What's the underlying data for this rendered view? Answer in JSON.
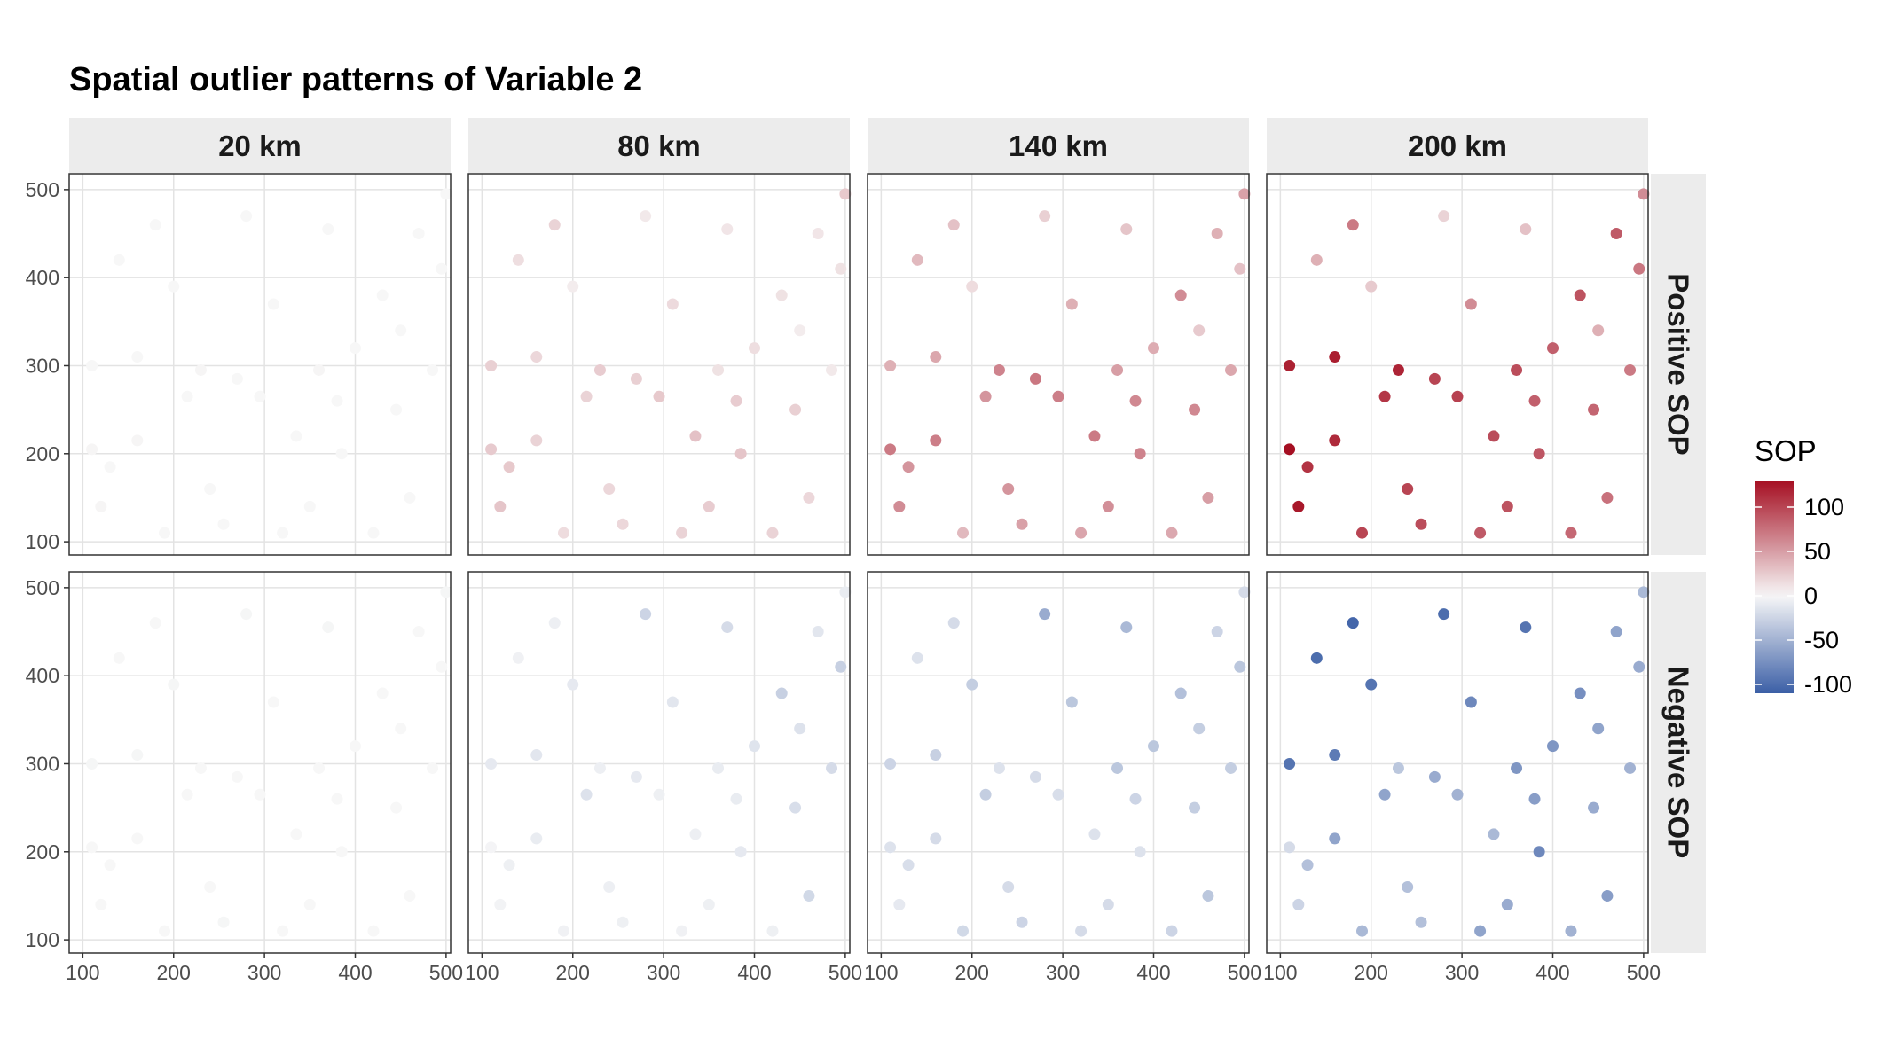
{
  "chart_data": {
    "type": "scatter",
    "title": "Spatial outlier patterns of Variable 2",
    "xlabel": "",
    "ylabel": "",
    "facet_columns": [
      "20 km",
      "80 km",
      "140 km",
      "200 km"
    ],
    "facet_rows": [
      "Positive SOP",
      "Negative SOP"
    ],
    "xlim": [
      85,
      505
    ],
    "ylim": [
      85,
      518
    ],
    "x_ticks": [
      100,
      200,
      300,
      400,
      500
    ],
    "y_ticks": [
      100,
      200,
      300,
      400,
      500
    ],
    "grid": true,
    "color_scale": {
      "title": "SOP",
      "range": [
        -110,
        130
      ],
      "ticks": [
        100,
        50,
        0,
        -50,
        -100
      ],
      "colors": {
        "low": "#3b5fa6",
        "mid": "#f7f7f7",
        "high": "#a50f22"
      }
    },
    "legend_position": "right",
    "sample_points": [
      [
        110,
        205
      ],
      [
        110,
        300
      ],
      [
        120,
        140
      ],
      [
        130,
        185
      ],
      [
        160,
        215
      ],
      [
        160,
        310
      ],
      [
        190,
        110
      ],
      [
        215,
        265
      ],
      [
        230,
        295
      ],
      [
        255,
        120
      ],
      [
        270,
        285
      ],
      [
        280,
        470
      ],
      [
        295,
        265
      ],
      [
        320,
        110
      ],
      [
        335,
        220
      ],
      [
        350,
        140
      ],
      [
        360,
        295
      ],
      [
        370,
        455
      ],
      [
        385,
        200
      ],
      [
        400,
        320
      ],
      [
        420,
        110
      ],
      [
        430,
        380
      ],
      [
        445,
        250
      ],
      [
        460,
        150
      ],
      [
        470,
        450
      ],
      [
        485,
        295
      ],
      [
        495,
        410
      ],
      [
        500,
        495
      ],
      [
        140,
        420
      ],
      [
        180,
        460
      ],
      [
        200,
        390
      ],
      [
        240,
        160
      ],
      [
        310,
        370
      ],
      [
        380,
        260
      ],
      [
        450,
        340
      ]
    ],
    "panels": [
      {
        "row": "Positive SOP",
        "col": "20 km",
        "sop": [
          1,
          0,
          1,
          0,
          1,
          0,
          0,
          0,
          1,
          0,
          0,
          0,
          0,
          0,
          0,
          0,
          1,
          0,
          0,
          0,
          0,
          0,
          0,
          0,
          0,
          0,
          0,
          0,
          0,
          0,
          0,
          0,
          0,
          0,
          0
        ]
      },
      {
        "row": "Positive SOP",
        "col": "80 km",
        "sop": [
          25,
          22,
          28,
          26,
          20,
          18,
          15,
          20,
          24,
          18,
          22,
          8,
          26,
          20,
          30,
          24,
          12,
          10,
          28,
          14,
          20,
          12,
          22,
          18,
          10,
          8,
          12,
          26,
          14,
          20,
          6,
          18,
          16,
          24,
          6
        ]
      },
      {
        "row": "Positive SOP",
        "col": "140 km",
        "sop": [
          70,
          40,
          60,
          55,
          68,
          45,
          35,
          55,
          65,
          48,
          72,
          22,
          68,
          46,
          70,
          58,
          50,
          28,
          65,
          42,
          44,
          60,
          62,
          50,
          40,
          45,
          30,
          48,
          35,
          30,
          15,
          55,
          40,
          62,
          25
        ]
      },
      {
        "row": "Positive SOP",
        "col": "200 km",
        "sop": [
          130,
          120,
          125,
          110,
          115,
          122,
          100,
          108,
          118,
          95,
          100,
          20,
          102,
          88,
          96,
          92,
          95,
          30,
          90,
          85,
          80,
          92,
          82,
          75,
          88,
          70,
          72,
          60,
          40,
          70,
          25,
          100,
          60,
          85,
          40
        ]
      },
      {
        "row": "Negative SOP",
        "col": "20 km",
        "sop": [
          0,
          -1,
          0,
          0,
          0,
          -1,
          0,
          0,
          0,
          -1,
          0,
          -1,
          0,
          0,
          0,
          0,
          0,
          -1,
          0,
          0,
          0,
          0,
          0,
          0,
          0,
          0,
          0,
          -1,
          0,
          0,
          -1,
          0,
          0,
          0,
          0
        ]
      },
      {
        "row": "Negative SOP",
        "col": "80 km",
        "sop": [
          -2,
          -10,
          -3,
          -5,
          -8,
          -12,
          -4,
          -15,
          -6,
          -5,
          -10,
          -25,
          -5,
          -4,
          -6,
          -5,
          -8,
          -20,
          -10,
          -14,
          -5,
          -28,
          -18,
          -22,
          -12,
          -20,
          -28,
          -8,
          -4,
          -6,
          -10,
          -6,
          -12,
          -8,
          -15
        ]
      },
      {
        "row": "Negative SOP",
        "col": "140 km",
        "sop": [
          -15,
          -25,
          -10,
          -18,
          -20,
          -28,
          -22,
          -30,
          -15,
          -25,
          -20,
          -55,
          -18,
          -20,
          -15,
          -20,
          -35,
          -45,
          -15,
          -35,
          -25,
          -40,
          -30,
          -35,
          -25,
          -30,
          -35,
          -20,
          -15,
          -20,
          -30,
          -20,
          -35,
          -25,
          -30
        ]
      },
      {
        "row": "Negative SOP",
        "col": "200 km",
        "sop": [
          -20,
          -95,
          -25,
          -40,
          -60,
          -90,
          -45,
          -60,
          -35,
          -40,
          -55,
          -100,
          -50,
          -60,
          -45,
          -55,
          -70,
          -95,
          -80,
          -70,
          -50,
          -75,
          -55,
          -65,
          -60,
          -50,
          -55,
          -45,
          -100,
          -105,
          -95,
          -40,
          -80,
          -65,
          -60
        ]
      }
    ]
  }
}
